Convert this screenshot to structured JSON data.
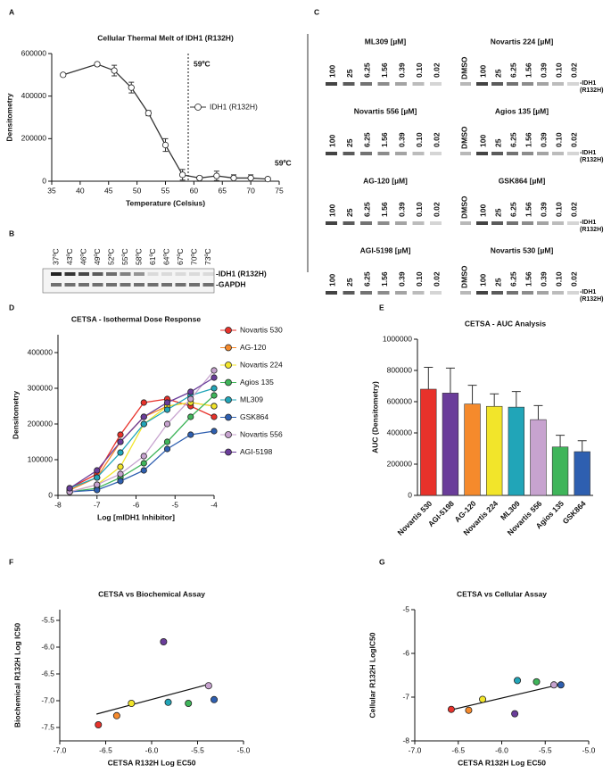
{
  "chart_data": [
    {
      "type": "line",
      "panel": "A",
      "title": "Cellular Thermal Melt of IDH1 (R132H)",
      "xlabel": "Temperature (Celsius)",
      "ylabel": "Densitometry",
      "x": [
        37,
        43,
        46,
        49,
        52,
        55,
        58,
        61,
        64,
        67,
        70,
        73
      ],
      "series": [
        {
          "name": "IDH1 (R132H)",
          "color": "#333333",
          "marker": "open",
          "values": [
            500000,
            550000,
            520000,
            440000,
            320000,
            170000,
            30000,
            15000,
            25000,
            15000,
            15000,
            10000
          ],
          "errors": [
            5000,
            8000,
            25000,
            25000,
            12000,
            30000,
            25000,
            8000,
            22000,
            15000,
            15000,
            8000
          ]
        }
      ],
      "xlim": [
        35,
        75
      ],
      "xticks": [
        35,
        40,
        45,
        50,
        55,
        60,
        65,
        70,
        75
      ],
      "ylim": [
        0,
        600000
      ],
      "yticks": [
        0,
        200000,
        400000,
        600000
      ],
      "vline": 59,
      "annotation": "59ºC",
      "legend": "right"
    },
    {
      "type": "blot",
      "panel": "B",
      "lanes": [
        "37ºC",
        "43ºC",
        "46ºC",
        "49ºC",
        "52ºC",
        "55ºC",
        "58ºC",
        "61ºC",
        "64ºC",
        "67ºC",
        "70ºC",
        "73ºC"
      ],
      "bands": [
        "-IDH1 (R132H)",
        "-GAPDH"
      ]
    },
    {
      "type": "blot",
      "panel": "C",
      "annotation": "59ºC",
      "blots": [
        "ML309 [µM]",
        "Novartis 224 [µM]",
        "Novartis 556 [µM]",
        "Agios 135 [µM]",
        "AG-120 [µM]",
        "GSK864 [µM]",
        "AGI-5198 [µM]",
        "Novartis 530 [µM]"
      ],
      "lanes": [
        "100",
        "25",
        "6.25",
        "1.56",
        "0.39",
        "0.10",
        "0.02"
      ],
      "control": "DMSO",
      "bands": [
        "-IDH1 (R132H)"
      ]
    },
    {
      "type": "line",
      "panel": "D",
      "title": "CETSA - Isothermal Dose Response",
      "xlabel": "Log [mIDH1 Inhibitor]",
      "ylabel": "Densitometry",
      "x": [
        -7.7,
        -7,
        -6.4,
        -5.8,
        -5.2,
        -4.6,
        -4
      ],
      "series": [
        {
          "name": "Novartis 530",
          "color": "#e8322b",
          "values": [
            20000,
            60000,
            170000,
            260000,
            270000,
            250000,
            220000
          ]
        },
        {
          "name": "AG-120",
          "color": "#f58a2c",
          "values": [
            15000,
            50000,
            150000,
            220000,
            250000,
            260000,
            250000
          ]
        },
        {
          "name": "Novartis 224",
          "color": "#f2e52a",
          "values": [
            10000,
            30000,
            80000,
            200000,
            250000,
            260000,
            250000
          ]
        },
        {
          "name": "Agios 135",
          "color": "#3fb55a",
          "values": [
            10000,
            20000,
            50000,
            90000,
            150000,
            220000,
            280000
          ]
        },
        {
          "name": "ML309",
          "color": "#21a5b8",
          "values": [
            20000,
            50000,
            120000,
            200000,
            240000,
            280000,
            300000
          ]
        },
        {
          "name": "GSK864",
          "color": "#2e5fb0",
          "values": [
            10000,
            15000,
            40000,
            70000,
            130000,
            170000,
            180000
          ]
        },
        {
          "name": "Novartis 556",
          "color": "#c7a3cf",
          "values": [
            10000,
            30000,
            60000,
            110000,
            200000,
            270000,
            350000
          ]
        },
        {
          "name": "AGI-5198",
          "color": "#6a3d9a",
          "values": [
            20000,
            70000,
            150000,
            220000,
            260000,
            290000,
            330000
          ]
        }
      ],
      "xlim": [
        -8,
        -4
      ],
      "xticks": [
        -8,
        -7,
        -6,
        -5,
        -4
      ],
      "ylim": [
        0,
        450000
      ],
      "yticks": [
        0,
        100000,
        200000,
        300000,
        400000
      ],
      "legend": "right"
    },
    {
      "type": "bar",
      "panel": "E",
      "title": "CETSA - AUC Analysis",
      "ylabel": "AUC (Densitometry)",
      "categories": [
        "Novartis 530",
        "AGI-5198",
        "AG-120",
        "Novartis 224",
        "ML309",
        "Novartis 556",
        "Agios 135",
        "GSK864"
      ],
      "values": [
        680000,
        655000,
        585000,
        570000,
        565000,
        485000,
        310000,
        280000
      ],
      "errors": [
        140000,
        160000,
        120000,
        80000,
        100000,
        90000,
        75000,
        70000
      ],
      "colors": [
        "#e8322b",
        "#6a3d9a",
        "#f58a2c",
        "#f2e52a",
        "#21a5b8",
        "#c7a3cf",
        "#3fb55a",
        "#2e5fb0"
      ],
      "ylim": [
        0,
        1000000
      ],
      "yticks": [
        0,
        200000,
        400000,
        600000,
        800000,
        1000000
      ]
    },
    {
      "type": "scatter",
      "panel": "F",
      "title": "CETSA vs Biochemical Assay",
      "xlabel": "CETSA R132H Log EC50",
      "ylabel": "Biochemical R132H Log IC50",
      "x": [
        -6.58,
        -6.38,
        -6.22,
        -5.87,
        -5.82,
        -5.6,
        -5.38,
        -5.32
      ],
      "values": [
        -7.45,
        -7.28,
        -7.05,
        -5.9,
        -7.03,
        -7.05,
        -6.72,
        -6.98
      ],
      "colors": [
        "#e8322b",
        "#f58a2c",
        "#f2e52a",
        "#6a3d9a",
        "#21a5b8",
        "#3fb55a",
        "#c7a3cf",
        "#2e5fb0"
      ],
      "trendline": {
        "x": [
          -6.6,
          -5.35
        ],
        "y": [
          -7.25,
          -6.68
        ]
      },
      "xlim": [
        -7,
        -5
      ],
      "xticks": [
        {
          "value": -7,
          "label": "-7.0"
        },
        -6.5,
        {
          "value": -6,
          "label": "-6.0"
        },
        -5.5,
        {
          "value": -5,
          "label": "-5.0"
        }
      ],
      "ylim": [
        -7.75,
        -5.3
      ],
      "yticks": [
        -5.5,
        {
          "value": -6,
          "label": "-6.0"
        },
        -6.5,
        {
          "value": -7,
          "label": "-7.0"
        },
        -7.5
      ]
    },
    {
      "type": "scatter",
      "panel": "G",
      "title": "CETSA vs Cellular Assay",
      "xlabel": "CETSA R132H Log EC50",
      "ylabel": "Cellular R132H LogIC50",
      "x": [
        -6.58,
        -6.38,
        -6.22,
        -5.85,
        -5.82,
        -5.6,
        -5.4,
        -5.32
      ],
      "values": [
        -7.28,
        -7.3,
        -7.05,
        -7.38,
        -6.62,
        -6.65,
        -6.72,
        -6.72
      ],
      "colors": [
        "#e8322b",
        "#f58a2c",
        "#f2e52a",
        "#6a3d9a",
        "#21a5b8",
        "#3fb55a",
        "#c7a3cf",
        "#2e5fb0"
      ],
      "trendline": {
        "x": [
          -6.6,
          -5.35
        ],
        "y": [
          -7.3,
          -6.72
        ]
      },
      "xlim": [
        -7,
        -5
      ],
      "xticks": [
        {
          "value": -7,
          "label": "-7.0"
        },
        -6.5,
        {
          "value": -6,
          "label": "-6.0"
        },
        -5.5,
        {
          "value": -5,
          "label": "-5.0"
        }
      ],
      "ylim": [
        -8,
        -5
      ],
      "yticks": [
        -5,
        -6,
        -7,
        -8
      ]
    }
  ]
}
